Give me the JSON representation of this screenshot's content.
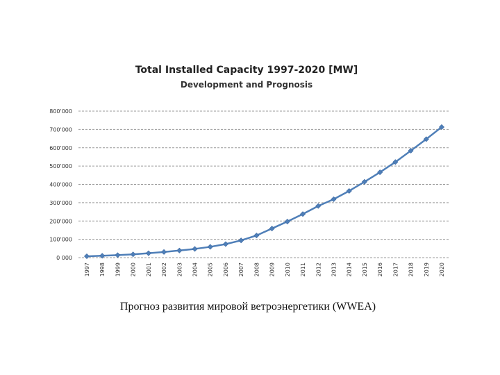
{
  "chart_data": {
    "type": "line",
    "title": "Total Installed Capacity 1997-2020 [MW]",
    "subtitle": "Development and Prognosis",
    "xlabel": "",
    "ylabel": "",
    "x": [
      "1997",
      "1998",
      "1999",
      "2000",
      "2001",
      "2002",
      "2003",
      "2004",
      "2005",
      "2006",
      "2007",
      "2008",
      "2009",
      "2010",
      "2011",
      "2012",
      "2013",
      "2014",
      "2015",
      "2016",
      "2017",
      "2018",
      "2019",
      "2020"
    ],
    "series": [
      {
        "values": [
          7500,
          10200,
          13600,
          18000,
          24000,
          31000,
          39000,
          47600,
          59000,
          74000,
          94000,
          121000,
          159000,
          197000,
          238000,
          282000,
          319000,
          364000,
          414000,
          466000,
          522000,
          584000,
          647000,
          713000
        ]
      }
    ],
    "ylim": [
      0,
      800000
    ],
    "yticks": [
      "0 000",
      "100'000",
      "200'000",
      "300'000",
      "400'000",
      "500'000",
      "600'000",
      "700'000",
      "800'000"
    ],
    "grid": true,
    "line_color": "#4f7fb8",
    "marker_color": "#4f7fb8"
  },
  "caption": "Прогноз развития мировой ветроэнергетики (WWEA)"
}
